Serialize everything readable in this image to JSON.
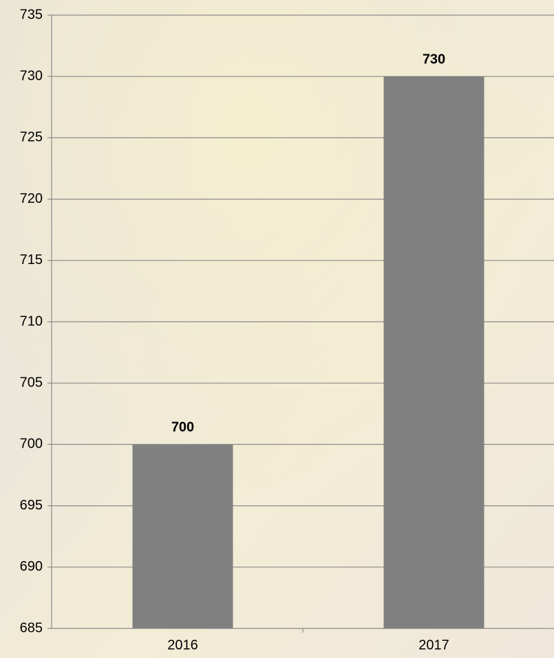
{
  "chart_data": {
    "type": "bar",
    "categories": [
      "2016",
      "2017"
    ],
    "values": [
      700,
      730
    ],
    "color": "#808080",
    "ylim": [
      685,
      735
    ],
    "yticks": [
      685,
      690,
      695,
      700,
      705,
      710,
      715,
      720,
      725,
      730,
      735
    ],
    "grid": true
  }
}
